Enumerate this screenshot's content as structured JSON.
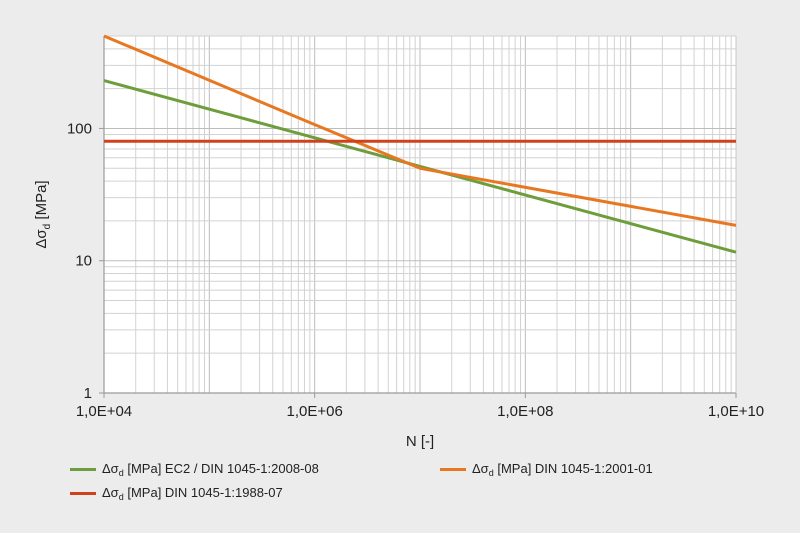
{
  "chart_data": {
    "type": "line",
    "xscale": "log",
    "yscale": "log",
    "xlim": [
      10000,
      10000000000
    ],
    "ylim": [
      1,
      500
    ],
    "xlabel": "N [-]",
    "ylabel": {
      "prefix": "Δσ",
      "sub": "d",
      "suffix": " [MPa]"
    },
    "x_ticks": [
      {
        "value": 10000,
        "label": "1,0E+04"
      },
      {
        "value": 1000000,
        "label": "1,0E+06"
      },
      {
        "value": 100000000,
        "label": "1,0E+08"
      },
      {
        "value": 10000000000,
        "label": "1,0E+10"
      }
    ],
    "y_ticks": [
      {
        "value": 1,
        "label": "1"
      },
      {
        "value": 10,
        "label": "10"
      },
      {
        "value": 100,
        "label": "100"
      }
    ],
    "grid": true,
    "series": [
      {
        "name": {
          "prefix": "Δσ",
          "sub": "d",
          "suffix": " [MPa] EC2 / DIN 1045-1:2008-08"
        },
        "color": "#6e9e3c",
        "points": [
          [
            10000,
            230
          ],
          [
            10000000000,
            11.6
          ]
        ]
      },
      {
        "name": {
          "prefix": "Δσ",
          "sub": "d",
          "suffix": " [MPa] DIN 1045-1:2001-01"
        },
        "color": "#e87722",
        "points": [
          [
            10000,
            500
          ],
          [
            1000000,
            107
          ],
          [
            10000000,
            50
          ],
          [
            10000000000,
            18.5
          ]
        ]
      },
      {
        "name": {
          "prefix": "Δσ",
          "sub": "d",
          "suffix": " [MPa] DIN 1045-1:1988-07"
        },
        "color": "#d0421b",
        "points": [
          [
            10000,
            80
          ],
          [
            10000000000,
            80
          ]
        ]
      }
    ],
    "legend_position": "bottom"
  }
}
